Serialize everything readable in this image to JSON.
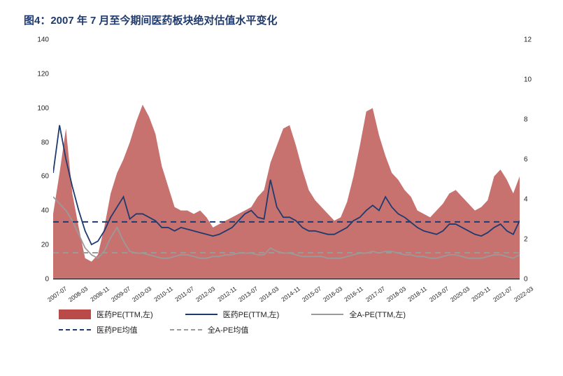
{
  "title": "图4：2007 年 7 月至今期间医药板块绝对估值水平变化",
  "chart": {
    "type": "combo-area-line",
    "background_color": "#ffffff",
    "area_color": "#b94a48",
    "area_opacity": 0.78,
    "line_blue_color": "#1f3a6e",
    "line_gray_color": "#9a9a9a",
    "dash_blue_color": "#1f3a6e",
    "dash_gray_color": "#9a9a9a",
    "line_width": 1.8,
    "dash_width": 2,
    "y_left": {
      "min": 0,
      "max": 140,
      "step": 20
    },
    "y_right": {
      "min": 0,
      "max": 12,
      "step": 2
    },
    "x_labels": [
      "2007-07",
      "2008-03",
      "2008-11",
      "2009-07",
      "2010-03",
      "2010-11",
      "2011-07",
      "2012-03",
      "2012-11",
      "2013-07",
      "2014-03",
      "2014-11",
      "2015-07",
      "2016-03",
      "2016-11",
      "2017-07",
      "2018-03",
      "2018-11",
      "2019-07",
      "2020-03",
      "2020-11",
      "2021-07",
      "2022-03"
    ],
    "area_series": [
      38,
      62,
      88,
      50,
      30,
      12,
      10,
      14,
      30,
      50,
      62,
      70,
      80,
      92,
      102,
      95,
      85,
      66,
      54,
      42,
      40,
      40,
      38,
      40,
      36,
      30,
      32,
      34,
      36,
      38,
      40,
      42,
      48,
      52,
      68,
      78,
      88,
      90,
      78,
      64,
      52,
      46,
      42,
      38,
      34,
      36,
      45,
      60,
      78,
      98,
      100,
      84,
      72,
      62,
      58,
      52,
      48,
      40,
      38,
      36,
      40,
      44,
      50,
      52,
      48,
      44,
      40,
      42,
      46,
      60,
      64,
      58,
      50,
      60
    ],
    "blue_series": [
      62,
      90,
      70,
      54,
      40,
      28,
      20,
      22,
      28,
      36,
      42,
      48,
      35,
      38,
      38,
      36,
      34,
      30,
      30,
      28,
      30,
      29,
      28,
      27,
      26,
      25,
      26,
      28,
      30,
      34,
      38,
      40,
      36,
      35,
      58,
      42,
      36,
      36,
      34,
      30,
      28,
      28,
      27,
      26,
      26,
      28,
      30,
      34,
      36,
      40,
      43,
      40,
      48,
      42,
      38,
      36,
      33,
      30,
      28,
      27,
      26,
      28,
      32,
      32,
      30,
      28,
      26,
      25,
      27,
      30,
      32,
      28,
      26,
      34
    ],
    "gray_series": [
      48,
      44,
      40,
      34,
      26,
      18,
      14,
      12,
      16,
      24,
      30,
      22,
      16,
      15,
      15,
      14,
      13,
      12,
      12,
      13,
      14,
      14,
      13,
      12,
      12,
      13,
      13,
      14,
      14,
      15,
      15,
      15,
      14,
      14,
      18,
      16,
      15,
      15,
      14,
      13,
      13,
      13,
      13,
      12,
      12,
      12,
      13,
      14,
      15,
      15,
      16,
      15,
      16,
      16,
      15,
      14,
      14,
      13,
      13,
      12,
      12,
      13,
      14,
      14,
      13,
      12,
      12,
      12,
      13,
      14,
      14,
      13,
      12,
      14
    ],
    "blue_dash_value": 33.3,
    "gray_dash_value": 15.2,
    "legend": {
      "row1": [
        {
          "label": "医药PE(TTM,左)",
          "type": "box",
          "color": "#b94a48"
        },
        {
          "label": "医药PE(TTM,左)",
          "type": "line",
          "color": "#1f3a6e"
        },
        {
          "label": "全A-PE(TTM,左)",
          "type": "line",
          "color": "#9a9a9a"
        }
      ],
      "row2": [
        {
          "label": "医药PE均值",
          "type": "dash",
          "color": "#1f3a6e"
        },
        {
          "label": "全A-PE均值",
          "type": "dash",
          "color": "#9a9a9a"
        }
      ]
    }
  }
}
